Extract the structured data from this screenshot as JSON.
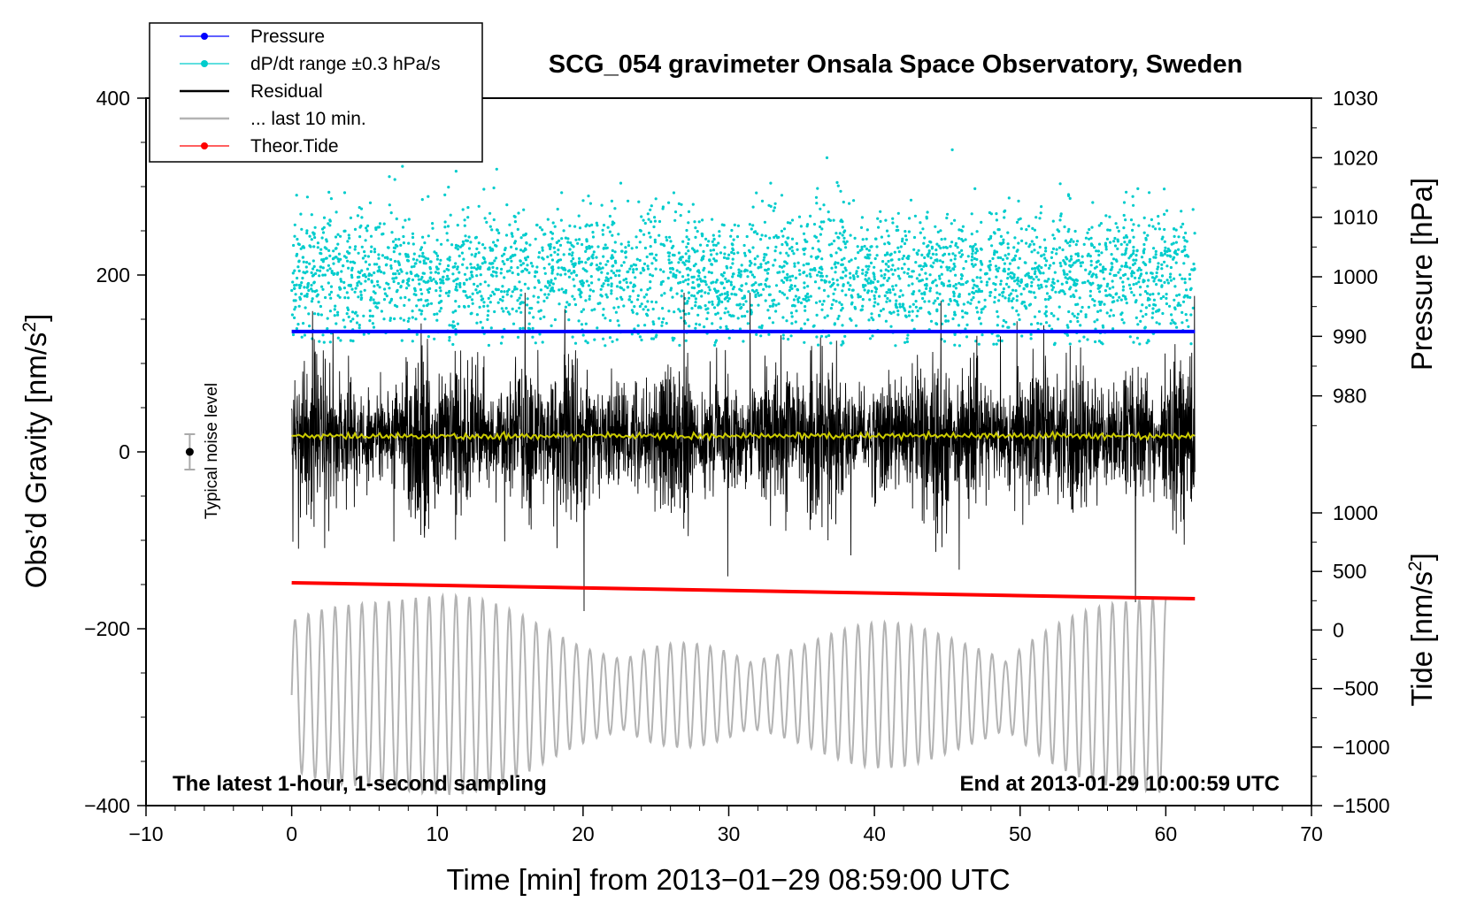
{
  "chart_data": {
    "type": "line",
    "title": "SCG_054 gravimeter Onsala Space Observatory, Sweden",
    "xlabel": "Time [min] from 2013−01−29 08:59:00 UTC",
    "ylabel_left_prefix": "Obs’d Gravity [nm/s",
    "ylabel_left_sup": "2",
    "ylabel_left_suffix": "]",
    "ylabel_right_top": "Pressure [hPa]",
    "ylabel_right_bottom_prefix": "Tide [nm/s",
    "ylabel_right_bottom_sup": "2",
    "ylabel_right_bottom_suffix": "]",
    "xlim": [
      -10,
      70
    ],
    "ylim": [
      -400,
      400
    ],
    "pressure_range": [
      970,
      1030
    ],
    "tide_range": [
      -1500,
      1500
    ],
    "x_ticks": [
      -10,
      0,
      10,
      20,
      30,
      40,
      50,
      60,
      70
    ],
    "x_tick_labels": [
      "−10",
      "0",
      "10",
      "20",
      "30",
      "40",
      "50",
      "60",
      "70"
    ],
    "y_ticks": [
      -400,
      -200,
      0,
      200,
      400
    ],
    "y_tick_labels": [
      "−400",
      "−200",
      "0",
      "200",
      "400"
    ],
    "pressure_ticks": [
      980,
      990,
      1000,
      1010,
      1020,
      1030
    ],
    "pressure_tick_labels": [
      "980",
      "990",
      "1000",
      "1010",
      "1020",
      "1030"
    ],
    "tide_ticks": [
      -1500,
      -1000,
      -500,
      0,
      500,
      1000
    ],
    "tide_tick_labels": [
      "−1500",
      "−1000",
      "−500",
      "0",
      "500",
      "1000"
    ],
    "annotation_left": "The latest 1-hour, 1-second sampling",
    "annotation_right": "End at 2013-01-29 10:00:59 UTC",
    "noise_label": "Typical noise level",
    "noise_marker": {
      "x": -7,
      "y": 0,
      "err": 20
    },
    "legend": [
      {
        "label": "Pressure",
        "color": "#0000ff",
        "marker": true
      },
      {
        "label": "dP/dt range ±0.3 hPa/s",
        "color": "#00cccc",
        "marker": true
      },
      {
        "label": "Residual",
        "color": "#000000",
        "marker": false
      },
      {
        "label": "... last 10 min.",
        "color": "#b3b3b3",
        "marker": false
      },
      {
        "label": "Theor.Tide",
        "color": "#ff0000",
        "marker": true
      }
    ],
    "series": [
      {
        "name": "Pressure",
        "axis": "pressure_hpa",
        "color": "#0000ff",
        "x": [
          0,
          62
        ],
        "values": [
          990.8,
          990.8
        ]
      },
      {
        "name": "dP/dt range ±0.3 hPa/s",
        "axis": "gravity",
        "color": "#00cccc",
        "x_range": [
          0,
          62
        ],
        "center": 200,
        "spread": 60,
        "extreme_max": 385,
        "extreme_min": 120
      },
      {
        "name": "Residual",
        "axis": "gravity",
        "color": "#000000",
        "x_range": [
          0,
          62
        ],
        "envelope_max": 180,
        "envelope_min": -180
      },
      {
        "name": "Smoothed residual",
        "axis": "gravity",
        "color": "#cccc00",
        "x": [
          0,
          62
        ],
        "values": [
          18,
          18
        ]
      },
      {
        "name": "Theor.Tide",
        "axis": "gravity",
        "color": "#ff0000",
        "x": [
          0,
          62
        ],
        "values": [
          -148,
          -166
        ]
      },
      {
        "name": "... last 10 min.",
        "axis": "gravity",
        "color": "#b3b3b3",
        "x_range": [
          0,
          60
        ],
        "center": -275,
        "amplitude_max": 120
      }
    ],
    "colors": {
      "pressure": "#0000ff",
      "dpdt": "#00cccc",
      "residual": "#000000",
      "last10": "#b3b3b3",
      "tide": "#ff0000",
      "smooth": "#cccc00"
    }
  }
}
